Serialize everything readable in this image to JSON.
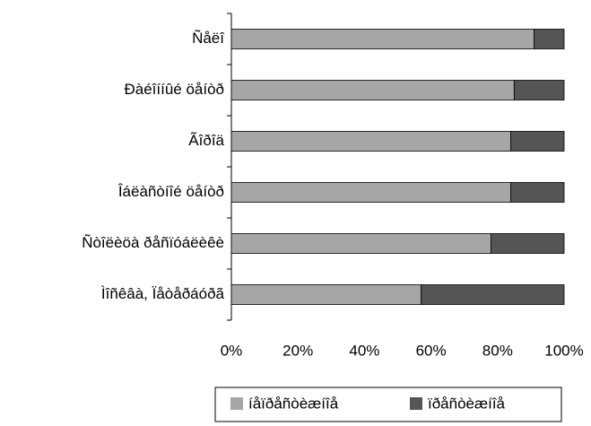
{
  "chart_data": {
    "type": "stacked-barh",
    "categories": [
      "Ñåëî",
      "Ðàéîííûé öåíòð",
      "Ãîðîä",
      "Îáëàñòíîé öåíòð",
      "Ñòîëèöà ðåñïóáëèêè",
      "Ìîñêâà, Ïåòåðáóðã"
    ],
    "series": [
      {
        "name": "íåïðåñòèæíîå",
        "color": "#a6a6a6",
        "values": [
          91,
          85,
          84,
          84,
          78,
          57
        ]
      },
      {
        "name": "ïðåñòèæíîå",
        "color": "#555555",
        "values": [
          9,
          15,
          16,
          16,
          22,
          43
        ]
      }
    ],
    "xlim": [
      0,
      100
    ],
    "xticks": [
      {
        "value": 0,
        "label": "0%"
      },
      {
        "value": 20,
        "label": "20%"
      },
      {
        "value": 40,
        "label": "40%"
      },
      {
        "value": 60,
        "label": "60%"
      },
      {
        "value": 80,
        "label": "80%"
      },
      {
        "value": 100,
        "label": "100%"
      }
    ],
    "legend": "bottom"
  }
}
